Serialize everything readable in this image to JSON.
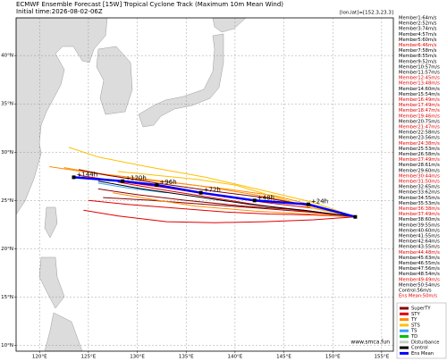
{
  "chart_data": {
    "type": "track-map",
    "title": "ECMWF Ensemble Forecast [15W] Tropical Cyclone Track (Maximum 10m Mean Wind)",
    "subtitle": "Initial time:2026-08-02-06Z",
    "position_note": "[lon,lat]=[152.3,23.3]",
    "watermark": "www.smca.fun",
    "xlim": [
      117.6,
      156.2
    ],
    "ylim": [
      9.4,
      43.9
    ],
    "xticks": [
      {
        "value": 120,
        "label": "120°E"
      },
      {
        "value": 125,
        "label": "125°E"
      },
      {
        "value": 130,
        "label": "130°E"
      },
      {
        "value": 135,
        "label": "135°E"
      },
      {
        "value": 140,
        "label": "140°E"
      },
      {
        "value": 145,
        "label": "145°E"
      },
      {
        "value": 150,
        "label": "150°E"
      },
      {
        "value": 155,
        "label": "155°E"
      }
    ],
    "yticks": [
      {
        "value": 10,
        "label": "10°N"
      },
      {
        "value": 15,
        "label": "15°N"
      },
      {
        "value": 20,
        "label": "20°N"
      },
      {
        "value": 25,
        "label": "25°N"
      },
      {
        "value": 30,
        "label": "30°N"
      },
      {
        "value": 35,
        "label": "35°N"
      },
      {
        "value": 40,
        "label": "40°N"
      }
    ],
    "grid": true,
    "tracks": [
      {
        "color": "#e00000",
        "lon": [
          152.3,
          148,
          143,
          138,
          133,
          128,
          124
        ],
        "lat": [
          23.3,
          24.2,
          24.8,
          25.5,
          26.3,
          27,
          27.6
        ]
      },
      {
        "color": "#8b0000",
        "lon": [
          152.3,
          147.5,
          142.5,
          137,
          131.5,
          126.5
        ],
        "lat": [
          23.3,
          23.8,
          24.2,
          24.6,
          25.0,
          25.3
        ]
      },
      {
        "color": "#ff8c00",
        "lon": [
          152.3,
          147,
          142,
          136.5,
          131,
          126,
          122.5
        ],
        "lat": [
          23.3,
          24.6,
          25.6,
          26.5,
          27.2,
          27.8,
          28.4
        ]
      },
      {
        "color": "#ffc000",
        "lon": [
          152.3,
          148,
          143,
          137,
          131,
          126,
          123
        ],
        "lat": [
          23.3,
          24.8,
          26,
          27.4,
          28.5,
          29.5,
          30.5
        ]
      },
      {
        "color": "#e00000",
        "lon": [
          152.3,
          148,
          143.5,
          139,
          134,
          129,
          125
        ],
        "lat": [
          23.3,
          23.5,
          23.6,
          23.8,
          24.2,
          24.6,
          25
        ]
      },
      {
        "color": "#8b0000",
        "lon": [
          152.3,
          147,
          141,
          135,
          130,
          126
        ],
        "lat": [
          23.3,
          24,
          24.4,
          25,
          25.6,
          26.2
        ]
      },
      {
        "color": "#ff8c00",
        "lon": [
          152.3,
          148,
          144,
          139,
          134,
          129,
          125,
          121
        ],
        "lat": [
          23.3,
          24.5,
          25.5,
          26.2,
          26.8,
          27.3,
          27.9,
          28.5
        ]
      },
      {
        "color": "#e00000",
        "lon": [
          152.3,
          148,
          143,
          138,
          133,
          128,
          124.5
        ],
        "lat": [
          23.3,
          23,
          22.8,
          22.7,
          22.8,
          23.4,
          24
        ]
      },
      {
        "color": "#ffc000",
        "lon": [
          152.3,
          148,
          144,
          140,
          136,
          132,
          128
        ],
        "lat": [
          23.3,
          24.2,
          25.4,
          26.6,
          27.2,
          27.6,
          28
        ]
      },
      {
        "color": "#8b0000",
        "lon": [
          152.3,
          148,
          143,
          137.5,
          132,
          127,
          124
        ],
        "lat": [
          23.3,
          24.4,
          25.3,
          26,
          26.8,
          27.6,
          28.2
        ]
      },
      {
        "color": "#e00000",
        "lon": [
          152.3,
          147,
          142,
          137,
          132,
          128
        ],
        "lat": [
          23.3,
          23.9,
          24.6,
          25.4,
          26.2,
          26.9
        ]
      },
      {
        "color": "#ff8c00",
        "lon": [
          152.3,
          147.5,
          142,
          136,
          131,
          127.5
        ],
        "lat": [
          23.3,
          23.6,
          23.9,
          24.4,
          25.2,
          25.8
        ]
      },
      {
        "color": "#33a0ff",
        "lon": [
          133,
          129,
          126
        ],
        "lat": [
          25.8,
          26.3,
          26.8
        ]
      },
      {
        "color": "#000000",
        "lon": [
          152.3,
          147,
          141.5,
          136,
          130.5,
          126
        ],
        "lat": [
          23.3,
          24.0,
          24.6,
          25.4,
          26.2,
          27
        ]
      }
    ],
    "ens_mean": {
      "color": "#0000ff",
      "lon": [
        152.3,
        147.5,
        142,
        136.5,
        132,
        128.5,
        123.5
      ],
      "lat": [
        23.3,
        24.6,
        25.0,
        25.8,
        26.6,
        27.0,
        27.4
      ],
      "labels": [
        null,
        "+24h",
        "+48h",
        "+72h",
        "+96h",
        "+120h",
        "+144h"
      ]
    },
    "members": [
      {
        "text": "Member1:64m/s",
        "color": "#000000"
      },
      {
        "text": "Member2:52m/s",
        "color": "#000000"
      },
      {
        "text": "Member3:74m/s",
        "color": "#000000"
      },
      {
        "text": "Member4:57m/s",
        "color": "#000000"
      },
      {
        "text": "Member5:60m/s",
        "color": "#000000"
      },
      {
        "text": "Member6:46m/s",
        "color": "#e00000"
      },
      {
        "text": "Member7:58m/s",
        "color": "#000000"
      },
      {
        "text": "Member8:55m/s",
        "color": "#000000"
      },
      {
        "text": "Member9:52m/s",
        "color": "#000000"
      },
      {
        "text": "Member10:57m/s",
        "color": "#000000"
      },
      {
        "text": "Member11:57m/s",
        "color": "#000000"
      },
      {
        "text": "Member12:45m/s",
        "color": "#e00000"
      },
      {
        "text": "Member13:48m/s",
        "color": "#e00000"
      },
      {
        "text": "Member14:60m/s",
        "color": "#000000"
      },
      {
        "text": "Member15:54m/s",
        "color": "#000000"
      },
      {
        "text": "Member16:49m/s",
        "color": "#e00000"
      },
      {
        "text": "Member17:49m/s",
        "color": "#e00000"
      },
      {
        "text": "Member18:47m/s",
        "color": "#e00000"
      },
      {
        "text": "Member19:46m/s",
        "color": "#e00000"
      },
      {
        "text": "Member20:75m/s",
        "color": "#000000"
      },
      {
        "text": "Member21:47m/s",
        "color": "#e00000"
      },
      {
        "text": "Member22:58m/s",
        "color": "#000000"
      },
      {
        "text": "Member23:56m/s",
        "color": "#000000"
      },
      {
        "text": "Member24:38m/s",
        "color": "#e00000"
      },
      {
        "text": "Member25:53m/s",
        "color": "#000000"
      },
      {
        "text": "Member26:58m/s",
        "color": "#000000"
      },
      {
        "text": "Member27:49m/s",
        "color": "#e00000"
      },
      {
        "text": "Member28:61m/s",
        "color": "#000000"
      },
      {
        "text": "Member29:60m/s",
        "color": "#000000"
      },
      {
        "text": "Member30:44m/s",
        "color": "#e00000"
      },
      {
        "text": "Member31:50m/s",
        "color": "#e00000"
      },
      {
        "text": "Member32:65m/s",
        "color": "#000000"
      },
      {
        "text": "Member33:62m/s",
        "color": "#000000"
      },
      {
        "text": "Member34:55m/s",
        "color": "#000000"
      },
      {
        "text": "Member35:53m/s",
        "color": "#000000"
      },
      {
        "text": "Member36:38m/s",
        "color": "#e00000"
      },
      {
        "text": "Member37:49m/s",
        "color": "#e00000"
      },
      {
        "text": "Member38:60m/s",
        "color": "#000000"
      },
      {
        "text": "Member39:55m/s",
        "color": "#000000"
      },
      {
        "text": "Member40:60m/s",
        "color": "#000000"
      },
      {
        "text": "Member41:55m/s",
        "color": "#000000"
      },
      {
        "text": "Member42:64m/s",
        "color": "#000000"
      },
      {
        "text": "Member43:55m/s",
        "color": "#000000"
      },
      {
        "text": "Member44:48m/s",
        "color": "#e00000"
      },
      {
        "text": "Member45:63m/s",
        "color": "#000000"
      },
      {
        "text": "Member46:55m/s",
        "color": "#000000"
      },
      {
        "text": "Member47:56m/s",
        "color": "#000000"
      },
      {
        "text": "Member48:54m/s",
        "color": "#000000"
      },
      {
        "text": "Member49:49m/s",
        "color": "#e00000"
      },
      {
        "text": "Member50:54m/s",
        "color": "#000000"
      },
      {
        "text": "Control:56m/s",
        "color": "#000000"
      },
      {
        "text": "Ens Mean:50m/s",
        "color": "#e00000"
      }
    ],
    "legend": [
      {
        "name": "SuperTY",
        "color": "#8b0000"
      },
      {
        "name": "STY",
        "color": "#e00000"
      },
      {
        "name": "TY",
        "color": "#ff8c00"
      },
      {
        "name": "STS",
        "color": "#ffc000"
      },
      {
        "name": "TS",
        "color": "#33a0ff"
      },
      {
        "name": "TD",
        "color": "#00c000"
      },
      {
        "name": "Disturbance",
        "color": "#cccccc"
      },
      {
        "name": "Control",
        "color": "#000000"
      },
      {
        "name": "Ens Mean",
        "color": "#0000ff"
      }
    ]
  }
}
